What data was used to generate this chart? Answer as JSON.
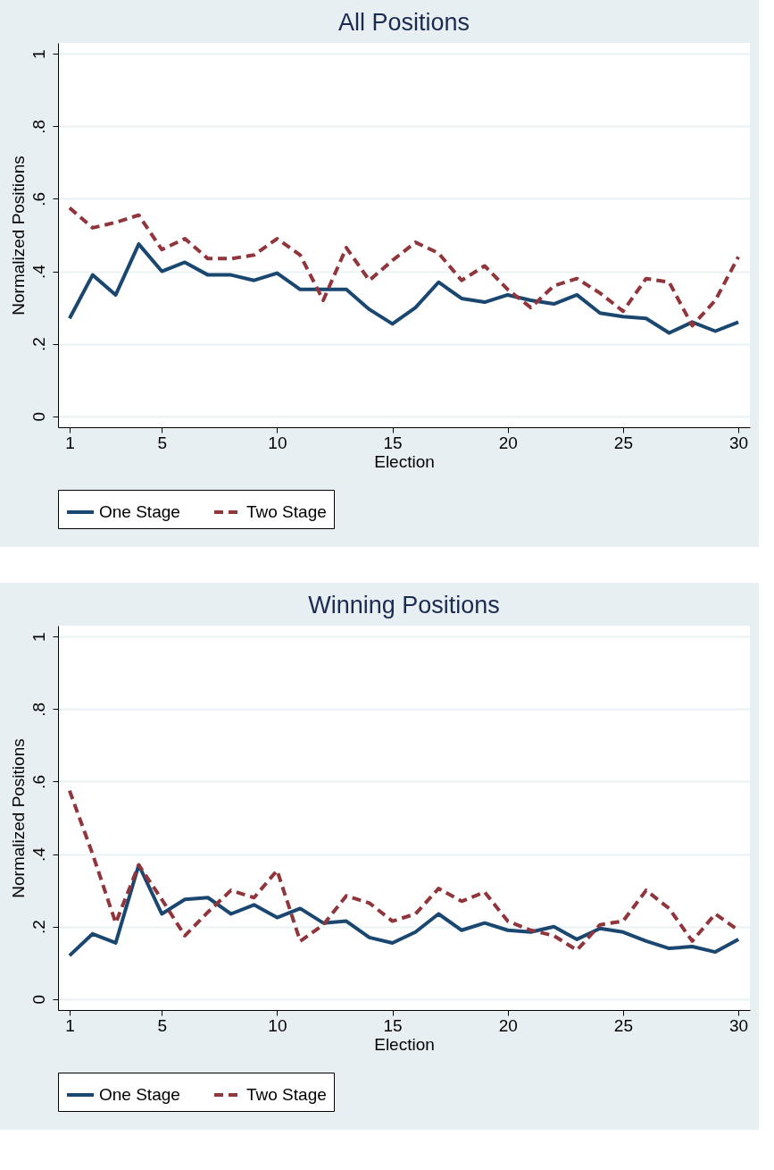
{
  "chart_data": [
    {
      "type": "line",
      "title": "All Positions",
      "xlabel": "Election",
      "ylabel": "Normalized Positions",
      "x": [
        1,
        2,
        3,
        4,
        5,
        6,
        7,
        8,
        9,
        10,
        11,
        12,
        13,
        14,
        15,
        16,
        17,
        18,
        19,
        20,
        21,
        22,
        23,
        24,
        25,
        26,
        27,
        28,
        29,
        30
      ],
      "xlim": [
        0.5,
        30.5
      ],
      "xticks": [
        1,
        5,
        10,
        15,
        20,
        25,
        30
      ],
      "ylim": [
        -0.03,
        1.03
      ],
      "yticks": [
        {
          "value": 0,
          "label": "0"
        },
        {
          "value": 0.2,
          "label": ".2"
        },
        {
          "value": 0.4,
          "label": ".4"
        },
        {
          "value": 0.6,
          "label": ".6"
        },
        {
          "value": 0.8,
          "label": ".8"
        },
        {
          "value": 1,
          "label": "1"
        }
      ],
      "grid": "y",
      "legend": "bottom",
      "series": [
        {
          "name": "One Stage",
          "color": "#1a476f",
          "line_style": "solid",
          "values": [
            0.27,
            0.39,
            0.335,
            0.475,
            0.4,
            0.425,
            0.39,
            0.39,
            0.375,
            0.395,
            0.35,
            0.35,
            0.35,
            0.295,
            0.255,
            0.3,
            0.37,
            0.325,
            0.315,
            0.335,
            0.32,
            0.31,
            0.335,
            0.285,
            0.275,
            0.27,
            0.23,
            0.26,
            0.235,
            0.26
          ]
        },
        {
          "name": "Two Stage",
          "color": "#90353b",
          "line_style": "dashed",
          "values": [
            0.575,
            0.52,
            0.535,
            0.555,
            0.46,
            0.49,
            0.435,
            0.435,
            0.445,
            0.49,
            0.445,
            0.32,
            0.465,
            0.375,
            0.43,
            0.48,
            0.45,
            0.375,
            0.415,
            0.35,
            0.3,
            0.36,
            0.38,
            0.34,
            0.29,
            0.38,
            0.37,
            0.25,
            0.32,
            0.44
          ]
        }
      ]
    },
    {
      "type": "line",
      "title": "Winning Positions",
      "xlabel": "Election",
      "ylabel": "Normalized Positions",
      "x": [
        1,
        2,
        3,
        4,
        5,
        6,
        7,
        8,
        9,
        10,
        11,
        12,
        13,
        14,
        15,
        16,
        17,
        18,
        19,
        20,
        21,
        22,
        23,
        24,
        25,
        26,
        27,
        28,
        29,
        30
      ],
      "xlim": [
        0.5,
        30.5
      ],
      "xticks": [
        1,
        5,
        10,
        15,
        20,
        25,
        30
      ],
      "ylim": [
        -0.03,
        1.03
      ],
      "yticks": [
        {
          "value": 0,
          "label": "0"
        },
        {
          "value": 0.2,
          "label": ".2"
        },
        {
          "value": 0.4,
          "label": ".4"
        },
        {
          "value": 0.6,
          "label": ".6"
        },
        {
          "value": 0.8,
          "label": ".8"
        },
        {
          "value": 1,
          "label": "1"
        }
      ],
      "grid": "y",
      "legend": "bottom",
      "series": [
        {
          "name": "One Stage",
          "color": "#1a476f",
          "line_style": "solid",
          "values": [
            0.12,
            0.18,
            0.155,
            0.37,
            0.235,
            0.275,
            0.28,
            0.235,
            0.26,
            0.225,
            0.25,
            0.21,
            0.215,
            0.17,
            0.155,
            0.185,
            0.235,
            0.19,
            0.21,
            0.19,
            0.185,
            0.2,
            0.165,
            0.195,
            0.185,
            0.16,
            0.14,
            0.145,
            0.13,
            0.165
          ]
        },
        {
          "name": "Two Stage",
          "color": "#90353b",
          "line_style": "dashed",
          "values": [
            0.575,
            0.4,
            0.21,
            0.37,
            0.275,
            0.175,
            0.24,
            0.3,
            0.28,
            0.355,
            0.16,
            0.205,
            0.285,
            0.265,
            0.215,
            0.235,
            0.305,
            0.27,
            0.295,
            0.215,
            0.19,
            0.175,
            0.135,
            0.205,
            0.215,
            0.3,
            0.25,
            0.16,
            0.235,
            0.19
          ]
        }
      ]
    }
  ]
}
